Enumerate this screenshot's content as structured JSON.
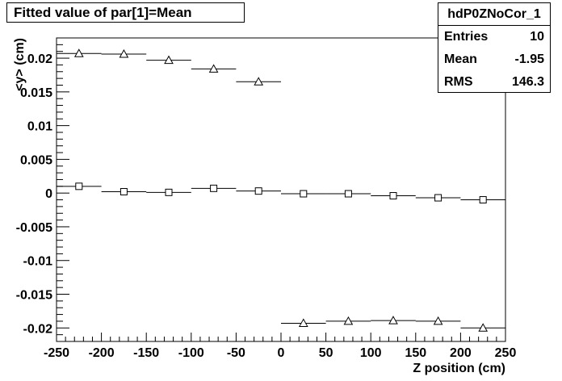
{
  "title": "Fitted value of par[1]=Mean",
  "stats": {
    "name": "hdP0ZNoCor_1",
    "rows": [
      {
        "label": "Entries",
        "value": "10"
      },
      {
        "label": "Mean",
        "value": "-1.95"
      },
      {
        "label": "RMS",
        "value": "146.3"
      }
    ]
  },
  "chart_data": {
    "type": "scatter",
    "xlabel": "Z position (cm)",
    "ylabel": "<y> (cm)",
    "xlim": [
      -250,
      250
    ],
    "ylim": [
      -0.022,
      0.023
    ],
    "xticks": [
      "-250",
      "-200",
      "-150",
      "-100",
      "-50",
      "0",
      "50",
      "100",
      "150",
      "200",
      "250"
    ],
    "yticks": [
      "0.02",
      "0.015",
      "0.01",
      "0.005",
      "0",
      "-0.005",
      "-0.01",
      "-0.015",
      "-0.02"
    ],
    "bin_width": 50,
    "series": [
      {
        "marker": "triangle",
        "x": [
          -225,
          -175,
          -125,
          -75,
          -25
        ],
        "y": [
          0.0207,
          0.0206,
          0.0197,
          0.0184,
          0.0165
        ]
      },
      {
        "marker": "square",
        "x": [
          -225,
          -175,
          -125,
          -75,
          -25,
          25,
          75,
          125,
          175,
          225
        ],
        "y": [
          0.001,
          0.0002,
          0.0001,
          0.0007,
          0.0003,
          -0.0001,
          -0.0001,
          -0.0004,
          -0.0007,
          -0.001
        ]
      },
      {
        "marker": "triangle",
        "x": [
          25,
          75,
          125,
          175,
          225
        ],
        "y": [
          -0.0193,
          -0.019,
          -0.0189,
          -0.019,
          -0.02
        ]
      }
    ]
  }
}
